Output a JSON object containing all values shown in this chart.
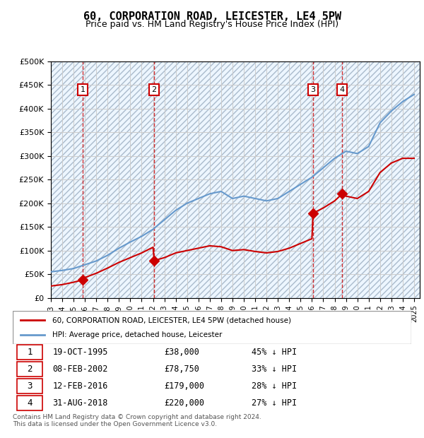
{
  "title": "60, CORPORATION ROAD, LEICESTER, LE4 5PW",
  "subtitle": "Price paid vs. HM Land Registry's House Price Index (HPI)",
  "ylabel": "",
  "ylim": [
    0,
    500000
  ],
  "yticks": [
    0,
    50000,
    100000,
    150000,
    200000,
    250000,
    300000,
    350000,
    400000,
    450000,
    500000
  ],
  "xlim_start": 1993,
  "xlim_end": 2025.5,
  "xticks": [
    1993,
    1994,
    1995,
    1996,
    1997,
    1998,
    1999,
    2000,
    2001,
    2002,
    2003,
    2004,
    2005,
    2006,
    2007,
    2008,
    2009,
    2010,
    2011,
    2012,
    2013,
    2014,
    2015,
    2016,
    2017,
    2018,
    2019,
    2020,
    2021,
    2022,
    2023,
    2024,
    2025
  ],
  "hpi_color": "#6699cc",
  "price_color": "#cc0000",
  "hatch_color": "#ccddee",
  "grid_color": "#cccccc",
  "background_hatch": "////",
  "transaction_dates": [
    1995.8,
    2002.1,
    2016.1,
    2018.67
  ],
  "transaction_prices": [
    38000,
    78750,
    179000,
    220000
  ],
  "transaction_labels": [
    "1",
    "2",
    "3",
    "4"
  ],
  "legend_price_label": "60, CORPORATION ROAD, LEICESTER, LE4 5PW (detached house)",
  "legend_hpi_label": "HPI: Average price, detached house, Leicester",
  "table_rows": [
    [
      "1",
      "19-OCT-1995",
      "£38,000",
      "45% ↓ HPI"
    ],
    [
      "2",
      "08-FEB-2002",
      "£78,750",
      "33% ↓ HPI"
    ],
    [
      "3",
      "12-FEB-2016",
      "£179,000",
      "28% ↓ HPI"
    ],
    [
      "4",
      "31-AUG-2018",
      "£220,000",
      "27% ↓ HPI"
    ]
  ],
  "footnote": "Contains HM Land Registry data © Crown copyright and database right 2024.\nThis data is licensed under the Open Government Licence v3.0.",
  "hpi_x": [
    1993,
    1994,
    1995,
    1996,
    1997,
    1998,
    1999,
    2000,
    2001,
    2002,
    2003,
    2004,
    2005,
    2006,
    2007,
    2008,
    2009,
    2010,
    2011,
    2012,
    2013,
    2014,
    2015,
    2016,
    2017,
    2018,
    2019,
    2020,
    2021,
    2022,
    2023,
    2024,
    2025
  ],
  "hpi_y": [
    55000,
    58000,
    62000,
    70000,
    78000,
    90000,
    105000,
    118000,
    130000,
    145000,
    165000,
    185000,
    200000,
    210000,
    220000,
    225000,
    210000,
    215000,
    210000,
    205000,
    210000,
    225000,
    240000,
    255000,
    275000,
    295000,
    310000,
    305000,
    320000,
    370000,
    395000,
    415000,
    430000
  ],
  "price_x": [
    1993,
    1994,
    1995,
    1995.8,
    1996,
    1997,
    1998,
    1999,
    2000,
    2001,
    2002,
    2002.1,
    2003,
    2004,
    2005,
    2006,
    2007,
    2008,
    2009,
    2010,
    2011,
    2012,
    2013,
    2014,
    2015,
    2016,
    2016.1,
    2017,
    2018,
    2018.67,
    2019,
    2020,
    2021,
    2022,
    2023,
    2024,
    2025
  ],
  "price_y": [
    25000,
    28000,
    33000,
    38000,
    43000,
    52000,
    63000,
    75000,
    85000,
    95000,
    107000,
    78750,
    85000,
    95000,
    100000,
    105000,
    110000,
    108000,
    100000,
    102000,
    98000,
    95000,
    98000,
    105000,
    115000,
    125000,
    179000,
    190000,
    205000,
    220000,
    215000,
    210000,
    225000,
    265000,
    285000,
    295000,
    295000
  ]
}
